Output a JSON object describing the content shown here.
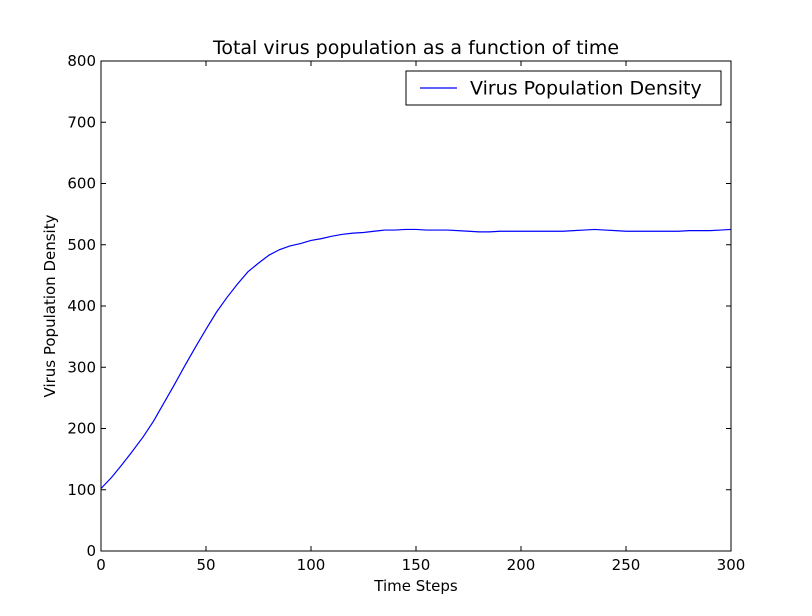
{
  "chart_data": {
    "type": "line",
    "title": "Total virus population as a function of time",
    "xlabel": "Time Steps",
    "ylabel": "Virus Population Density",
    "xlim": [
      0,
      300
    ],
    "ylim": [
      0,
      800
    ],
    "xticks": [
      0,
      50,
      100,
      150,
      200,
      250,
      300
    ],
    "yticks": [
      0,
      100,
      200,
      300,
      400,
      500,
      600,
      700,
      800
    ],
    "grid": false,
    "legend_position": "top-right",
    "series": [
      {
        "name": "Virus Population Density",
        "color": "#0000ff",
        "x": [
          0,
          5,
          10,
          15,
          20,
          25,
          30,
          35,
          40,
          45,
          50,
          55,
          60,
          65,
          70,
          75,
          80,
          85,
          90,
          95,
          100,
          105,
          110,
          115,
          120,
          125,
          130,
          135,
          140,
          145,
          150,
          155,
          160,
          165,
          170,
          175,
          180,
          185,
          190,
          195,
          200,
          205,
          210,
          215,
          220,
          225,
          230,
          235,
          240,
          245,
          250,
          255,
          260,
          265,
          270,
          275,
          280,
          285,
          290,
          295,
          300
        ],
        "values": [
          102,
          120,
          141,
          163,
          186,
          212,
          242,
          272,
          303,
          333,
          362,
          390,
          414,
          436,
          456,
          470,
          483,
          492,
          498,
          502,
          507,
          510,
          514,
          517,
          519,
          520,
          522,
          524,
          524,
          525,
          525,
          524,
          524,
          524,
          523,
          522,
          521,
          521,
          522,
          522,
          522,
          522,
          522,
          522,
          522,
          523,
          524,
          525,
          524,
          523,
          522,
          522,
          522,
          522,
          522,
          522,
          523,
          523,
          523,
          524,
          525
        ]
      }
    ]
  }
}
